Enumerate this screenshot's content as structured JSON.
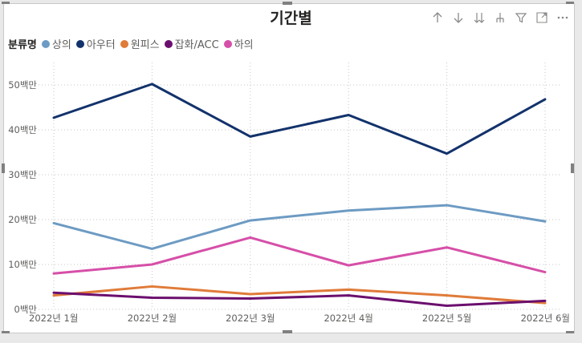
{
  "visual": {
    "title": "기간별"
  },
  "toolbar": {
    "icons": [
      "arrow-up-icon",
      "arrow-down-icon",
      "double-arrow-down-icon",
      "expand-hierarchy-icon",
      "filter-icon",
      "focus-mode-icon",
      "more-options-icon"
    ]
  },
  "legend": {
    "title": "분류명",
    "items": [
      {
        "label": "상의",
        "color": "#6d9bc3"
      },
      {
        "label": "아우터",
        "color": "#12326b"
      },
      {
        "label": "원피스",
        "color": "#e07b39"
      },
      {
        "label": "잡화/ACC",
        "color": "#6b0f6e"
      },
      {
        "label": "하의",
        "color": "#d64fa8"
      }
    ]
  },
  "chart_data": {
    "type": "line",
    "title": "기간별",
    "categories": [
      "2022년 1월",
      "2022년 2월",
      "2022년 3월",
      "2022년 4월",
      "2022년 5월",
      "2022년 6월"
    ],
    "y_unit": "백만",
    "y_ticks": [
      "0백만",
      "10백만",
      "20백만",
      "30백만",
      "40백만",
      "50백만"
    ],
    "ylim": [
      0,
      55
    ],
    "grid": true,
    "legend_position": "top-left",
    "series": [
      {
        "name": "상의",
        "color": "#6d9bc3",
        "values": [
          19.2,
          13.5,
          19.8,
          22.0,
          23.2,
          19.6
        ]
      },
      {
        "name": "아우터",
        "color": "#12326b",
        "values": [
          42.7,
          50.2,
          38.5,
          43.3,
          34.7,
          46.8
        ]
      },
      {
        "name": "원피스",
        "color": "#e07b39",
        "values": [
          3.1,
          5.1,
          3.4,
          4.4,
          3.1,
          1.4
        ]
      },
      {
        "name": "잡화/ACC",
        "color": "#6b0f6e",
        "values": [
          3.7,
          2.6,
          2.4,
          3.1,
          0.8,
          1.9
        ]
      },
      {
        "name": "하의",
        "color": "#d64fa8",
        "values": [
          8.0,
          10.0,
          16.0,
          9.8,
          13.8,
          8.3
        ]
      }
    ]
  }
}
